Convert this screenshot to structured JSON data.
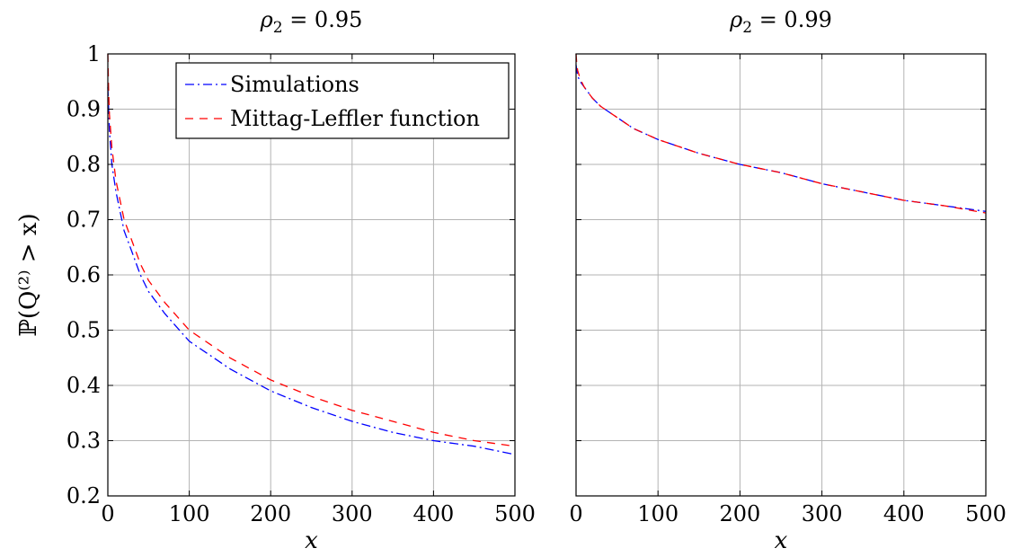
{
  "chart_data": [
    {
      "type": "line",
      "title_var": "ρ",
      "title_sub": "2",
      "title_rest": " = 0.95",
      "xlabel": "x",
      "ylabel": "ℙ(Q⁽²⁾ > x)",
      "xlim": [
        0,
        500
      ],
      "ylim": [
        0.2,
        1
      ],
      "xticks": [
        "0",
        "100",
        "200",
        "300",
        "400",
        "500"
      ],
      "yticks": [
        "0.2",
        "0.3",
        "0.4",
        "0.5",
        "0.6",
        "0.7",
        "0.8",
        "0.9",
        "1"
      ],
      "grid": true,
      "legend_position": "top-right",
      "series": [
        {
          "name": "Simulations",
          "color": "#0000ff",
          "dash": "dash-dot",
          "x": [
            0,
            1,
            2,
            5,
            10,
            20,
            30,
            40,
            50,
            70,
            100,
            150,
            200,
            250,
            300,
            350,
            400,
            450,
            500
          ],
          "y": [
            0.94,
            0.9,
            0.86,
            0.8,
            0.75,
            0.68,
            0.64,
            0.6,
            0.57,
            0.53,
            0.48,
            0.43,
            0.39,
            0.36,
            0.335,
            0.315,
            0.3,
            0.29,
            0.275
          ]
        },
        {
          "name": "Mittag-Leffler function",
          "color": "#ff0000",
          "dash": "dashed",
          "x": [
            0,
            1,
            2,
            5,
            10,
            20,
            30,
            40,
            50,
            70,
            100,
            150,
            200,
            250,
            300,
            350,
            400,
            450,
            500
          ],
          "y": [
            1.0,
            0.93,
            0.89,
            0.83,
            0.77,
            0.7,
            0.66,
            0.62,
            0.59,
            0.55,
            0.5,
            0.45,
            0.41,
            0.38,
            0.355,
            0.335,
            0.315,
            0.3,
            0.29
          ]
        }
      ]
    },
    {
      "type": "line",
      "title_var": "ρ",
      "title_sub": "2",
      "title_rest": " = 0.99",
      "xlabel": "x",
      "xlim": [
        0,
        500
      ],
      "ylim": [
        0.2,
        1
      ],
      "xticks": [
        "0",
        "100",
        "200",
        "300",
        "400",
        "500"
      ],
      "grid": true,
      "series": [
        {
          "name": "Simulations",
          "color": "#0000ff",
          "dash": "dash-dot",
          "x": [
            0,
            1,
            2,
            5,
            10,
            20,
            30,
            50,
            70,
            100,
            150,
            200,
            250,
            300,
            350,
            400,
            450,
            500
          ],
          "y": [
            0.98,
            0.97,
            0.96,
            0.95,
            0.94,
            0.92,
            0.905,
            0.885,
            0.865,
            0.845,
            0.82,
            0.8,
            0.785,
            0.765,
            0.75,
            0.735,
            0.725,
            0.715
          ]
        },
        {
          "name": "Mittag-Leffler function",
          "color": "#ff0000",
          "dash": "dashed",
          "x": [
            0,
            1,
            2,
            5,
            10,
            20,
            30,
            50,
            70,
            100,
            150,
            200,
            250,
            300,
            350,
            400,
            450,
            500
          ],
          "y": [
            1.0,
            0.98,
            0.97,
            0.955,
            0.94,
            0.92,
            0.905,
            0.885,
            0.865,
            0.845,
            0.82,
            0.8,
            0.785,
            0.765,
            0.75,
            0.735,
            0.725,
            0.712
          ]
        }
      ]
    }
  ]
}
